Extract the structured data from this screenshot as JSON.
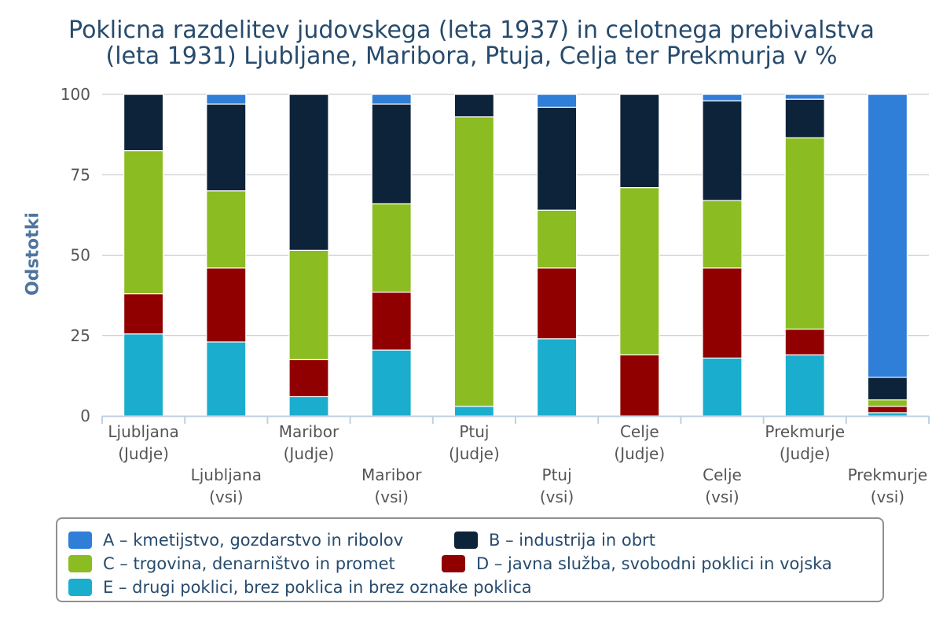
{
  "chart_data": {
    "type": "bar",
    "stacked": true,
    "title_lines": [
      "Poklicna razdelitev judovskega (leta 1937) in celotnega prebivalstva",
      "(leta 1931) Ljubljane, Maribora, Ptuja, Celja ter Prekmurja v %"
    ],
    "ylabel": "Odstotki",
    "ylim": [
      0,
      100
    ],
    "yticks": [
      0,
      25,
      50,
      75,
      100
    ],
    "grid": true,
    "legend_position": "bottom",
    "categories": [
      [
        "Ljubljana",
        "(Judje)"
      ],
      [
        "Ljubljana",
        "(vsi)"
      ],
      [
        "Maribor",
        "(Judje)"
      ],
      [
        "Maribor",
        "(vsi)"
      ],
      [
        "Ptuj",
        "(Judje)"
      ],
      [
        "Ptuj",
        "(vsi)"
      ],
      [
        "Celje",
        "(Judje)"
      ],
      [
        "Celje",
        "(vsi)"
      ],
      [
        "Prekmurje",
        "(Judje)"
      ],
      [
        "Prekmurje",
        "(vsi)"
      ]
    ],
    "series": [
      {
        "name": "E – drugi poklici, brez poklica in brez oznake poklica",
        "color": "#1aadce",
        "values": [
          25.5,
          23,
          6,
          20.5,
          3,
          24,
          0,
          18,
          19,
          1
        ]
      },
      {
        "name": "D – javna služba, svobodni poklici in vojska",
        "color": "#910000",
        "values": [
          12.5,
          23,
          11.5,
          18,
          0,
          22,
          19,
          28,
          8,
          2
        ]
      },
      {
        "name": "C – trgovina, denarništvo in promet",
        "color": "#8bbc21",
        "values": [
          44.5,
          24,
          34,
          27.5,
          90,
          18,
          52,
          21,
          59.5,
          2
        ]
      },
      {
        "name": "B – industrija in obrt",
        "color": "#0d233a",
        "values": [
          17.5,
          27,
          48.5,
          31,
          7,
          32,
          29,
          31,
          12,
          7
        ]
      },
      {
        "name": "A – kmetijstvo, gozdarstvo in ribolov",
        "color": "#2f7ed8",
        "values": [
          0,
          3,
          0,
          3,
          0,
          4,
          0,
          2,
          1.5,
          88
        ]
      }
    ]
  },
  "legend": [
    {
      "label": "A – kmetijstvo, gozdarstvo in ribolov",
      "color": "#2f7ed8"
    },
    {
      "label": "B – industrija in obrt",
      "color": "#0d233a"
    },
    {
      "label": "C – trgovina, denarništvo in promet",
      "color": "#8bbc21"
    },
    {
      "label": "D – javna služba, svobodni poklici in vojska",
      "color": "#910000"
    },
    {
      "label": "E – drugi poklici, brez poklica in brez oznake poklica",
      "color": "#1aadce"
    }
  ]
}
